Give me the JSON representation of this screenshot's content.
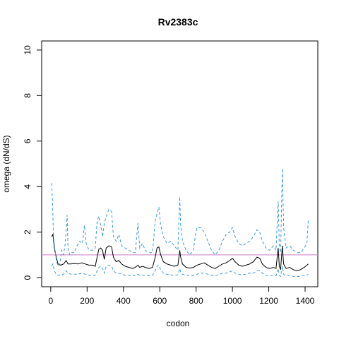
{
  "chart_data": {
    "type": "line",
    "title": "Rv2383c",
    "xlabel": "codon",
    "ylabel": "omega (dN/dS)",
    "xlim": [
      -50,
      1470
    ],
    "ylim": [
      -0.4,
      10.4
    ],
    "xticks": [
      0,
      200,
      400,
      600,
      800,
      1000,
      1200,
      1400
    ],
    "yticks": [
      0,
      2,
      4,
      6,
      8,
      10
    ],
    "reference_line": {
      "y": 1,
      "color": "#c77cc7"
    },
    "grid": false,
    "series": [
      {
        "style": "solid",
        "color": "#000000",
        "points": [
          [
            5,
            1.8
          ],
          [
            12,
            1.9
          ],
          [
            20,
            1.3
          ],
          [
            30,
            0.9
          ],
          [
            40,
            0.6
          ],
          [
            55,
            0.55
          ],
          [
            70,
            0.6
          ],
          [
            85,
            0.75
          ],
          [
            95,
            0.6
          ],
          [
            110,
            0.6
          ],
          [
            130,
            0.62
          ],
          [
            150,
            0.6
          ],
          [
            170,
            0.65
          ],
          [
            190,
            0.6
          ],
          [
            210,
            0.55
          ],
          [
            230,
            0.55
          ],
          [
            245,
            0.5
          ],
          [
            255,
            0.9
          ],
          [
            265,
            1.25
          ],
          [
            275,
            1.3
          ],
          [
            285,
            1.2
          ],
          [
            295,
            0.8
          ],
          [
            305,
            1.3
          ],
          [
            320,
            1.4
          ],
          [
            335,
            1.35
          ],
          [
            345,
            0.9
          ],
          [
            360,
            0.7
          ],
          [
            375,
            0.75
          ],
          [
            390,
            0.6
          ],
          [
            410,
            0.5
          ],
          [
            430,
            0.45
          ],
          [
            450,
            0.4
          ],
          [
            465,
            0.45
          ],
          [
            480,
            0.55
          ],
          [
            490,
            0.45
          ],
          [
            505,
            0.5
          ],
          [
            520,
            0.45
          ],
          [
            540,
            0.4
          ],
          [
            560,
            0.45
          ],
          [
            575,
            0.9
          ],
          [
            585,
            1.3
          ],
          [
            595,
            1.35
          ],
          [
            605,
            1.0
          ],
          [
            620,
            0.7
          ],
          [
            640,
            0.6
          ],
          [
            660,
            0.55
          ],
          [
            680,
            0.5
          ],
          [
            700,
            0.55
          ],
          [
            710,
            1.2
          ],
          [
            715,
            0.9
          ],
          [
            725,
            0.6
          ],
          [
            745,
            0.45
          ],
          [
            765,
            0.42
          ],
          [
            785,
            0.45
          ],
          [
            805,
            0.55
          ],
          [
            825,
            0.6
          ],
          [
            845,
            0.65
          ],
          [
            865,
            0.55
          ],
          [
            885,
            0.45
          ],
          [
            905,
            0.4
          ],
          [
            925,
            0.5
          ],
          [
            945,
            0.6
          ],
          [
            965,
            0.65
          ],
          [
            985,
            0.75
          ],
          [
            1000,
            0.85
          ],
          [
            1015,
            0.7
          ],
          [
            1035,
            0.55
          ],
          [
            1055,
            0.5
          ],
          [
            1075,
            0.55
          ],
          [
            1095,
            0.6
          ],
          [
            1115,
            0.7
          ],
          [
            1135,
            0.9
          ],
          [
            1150,
            0.85
          ],
          [
            1165,
            0.6
          ],
          [
            1185,
            0.45
          ],
          [
            1205,
            0.4
          ],
          [
            1225,
            0.45
          ],
          [
            1240,
            0.4
          ],
          [
            1252,
            1.3
          ],
          [
            1258,
            0.5
          ],
          [
            1265,
            0.35
          ],
          [
            1275,
            1.4
          ],
          [
            1282,
            0.6
          ],
          [
            1295,
            0.4
          ],
          [
            1315,
            0.45
          ],
          [
            1335,
            0.35
          ],
          [
            1355,
            0.3
          ],
          [
            1375,
            0.35
          ],
          [
            1395,
            0.45
          ],
          [
            1410,
            0.55
          ],
          [
            1418,
            0.6
          ]
        ]
      },
      {
        "style": "dashed",
        "color": "#3a9ad9",
        "points": [
          [
            5,
            4.15
          ],
          [
            10,
            3.3
          ],
          [
            15,
            1.8
          ],
          [
            22,
            1.3
          ],
          [
            30,
            0.8
          ],
          [
            40,
            0.5
          ],
          [
            50,
            0.6
          ],
          [
            60,
            1.2
          ],
          [
            70,
            1.0
          ],
          [
            80,
            1.5
          ],
          [
            90,
            2.75
          ],
          [
            95,
            1.3
          ],
          [
            105,
            1.0
          ],
          [
            115,
            1.1
          ],
          [
            130,
            1.1
          ],
          [
            145,
            1.4
          ],
          [
            160,
            1.6
          ],
          [
            175,
            1.5
          ],
          [
            185,
            2.3
          ],
          [
            195,
            1.5
          ],
          [
            205,
            1.3
          ],
          [
            215,
            1.2
          ],
          [
            230,
            1.2
          ],
          [
            245,
            1.3
          ],
          [
            255,
            2.5
          ],
          [
            265,
            2.7
          ],
          [
            275,
            2.3
          ],
          [
            285,
            1.8
          ],
          [
            295,
            2.4
          ],
          [
            310,
            2.8
          ],
          [
            320,
            3.0
          ],
          [
            335,
            2.9
          ],
          [
            345,
            1.8
          ],
          [
            360,
            1.6
          ],
          [
            375,
            1.9
          ],
          [
            390,
            1.4
          ],
          [
            410,
            1.3
          ],
          [
            430,
            1.2
          ],
          [
            450,
            1.1
          ],
          [
            465,
            1.1
          ],
          [
            480,
            2.4
          ],
          [
            490,
            1.3
          ],
          [
            505,
            1.5
          ],
          [
            520,
            1.2
          ],
          [
            540,
            1.1
          ],
          [
            560,
            1.1
          ],
          [
            575,
            2.5
          ],
          [
            585,
            2.8
          ],
          [
            595,
            3.1
          ],
          [
            605,
            2.3
          ],
          [
            620,
            1.8
          ],
          [
            640,
            1.5
          ],
          [
            660,
            1.6
          ],
          [
            680,
            1.4
          ],
          [
            700,
            1.2
          ],
          [
            710,
            3.55
          ],
          [
            715,
            2.3
          ],
          [
            725,
            1.6
          ],
          [
            745,
            1.2
          ],
          [
            765,
            1.0
          ],
          [
            785,
            1.2
          ],
          [
            795,
            1.8
          ],
          [
            805,
            2.2
          ],
          [
            825,
            2.2
          ],
          [
            845,
            2.0
          ],
          [
            865,
            1.6
          ],
          [
            885,
            1.2
          ],
          [
            905,
            1.0
          ],
          [
            925,
            1.2
          ],
          [
            945,
            1.6
          ],
          [
            965,
            1.9
          ],
          [
            985,
            2.0
          ],
          [
            1000,
            2.2
          ],
          [
            1015,
            1.8
          ],
          [
            1035,
            1.5
          ],
          [
            1055,
            1.4
          ],
          [
            1075,
            1.5
          ],
          [
            1095,
            1.6
          ],
          [
            1115,
            1.8
          ],
          [
            1135,
            2.1
          ],
          [
            1150,
            2.0
          ],
          [
            1165,
            1.6
          ],
          [
            1185,
            1.3
          ],
          [
            1205,
            1.2
          ],
          [
            1225,
            1.4
          ],
          [
            1240,
            1.2
          ],
          [
            1252,
            3.35
          ],
          [
            1258,
            1.4
          ],
          [
            1265,
            1.1
          ],
          [
            1275,
            4.8
          ],
          [
            1282,
            2.2
          ],
          [
            1295,
            1.3
          ],
          [
            1315,
            1.4
          ],
          [
            1335,
            1.2
          ],
          [
            1355,
            1.1
          ],
          [
            1375,
            1.1
          ],
          [
            1395,
            1.3
          ],
          [
            1410,
            1.5
          ],
          [
            1418,
            2.6
          ]
        ]
      },
      {
        "style": "dashed",
        "color": "#3a9ad9",
        "points": [
          [
            5,
            0.5
          ],
          [
            12,
            0.6
          ],
          [
            20,
            0.3
          ],
          [
            30,
            0.15
          ],
          [
            40,
            0.1
          ],
          [
            55,
            0.12
          ],
          [
            70,
            0.15
          ],
          [
            85,
            0.3
          ],
          [
            95,
            0.2
          ],
          [
            110,
            0.15
          ],
          [
            130,
            0.15
          ],
          [
            150,
            0.15
          ],
          [
            170,
            0.2
          ],
          [
            190,
            0.15
          ],
          [
            210,
            0.1
          ],
          [
            230,
            0.1
          ],
          [
            245,
            0.1
          ],
          [
            255,
            0.3
          ],
          [
            265,
            0.45
          ],
          [
            275,
            0.5
          ],
          [
            285,
            0.4
          ],
          [
            295,
            0.2
          ],
          [
            305,
            0.5
          ],
          [
            320,
            0.55
          ],
          [
            335,
            0.5
          ],
          [
            345,
            0.3
          ],
          [
            360,
            0.2
          ],
          [
            375,
            0.2
          ],
          [
            390,
            0.15
          ],
          [
            410,
            0.1
          ],
          [
            430,
            0.1
          ],
          [
            450,
            0.08
          ],
          [
            465,
            0.1
          ],
          [
            480,
            0.15
          ],
          [
            490,
            0.1
          ],
          [
            505,
            0.1
          ],
          [
            520,
            0.1
          ],
          [
            540,
            0.08
          ],
          [
            560,
            0.1
          ],
          [
            575,
            0.3
          ],
          [
            585,
            0.5
          ],
          [
            595,
            0.55
          ],
          [
            605,
            0.35
          ],
          [
            620,
            0.2
          ],
          [
            640,
            0.15
          ],
          [
            660,
            0.12
          ],
          [
            680,
            0.1
          ],
          [
            700,
            0.12
          ],
          [
            710,
            0.4
          ],
          [
            715,
            0.25
          ],
          [
            725,
            0.15
          ],
          [
            745,
            0.1
          ],
          [
            765,
            0.08
          ],
          [
            785,
            0.1
          ],
          [
            805,
            0.15
          ],
          [
            825,
            0.2
          ],
          [
            845,
            0.2
          ],
          [
            865,
            0.15
          ],
          [
            885,
            0.1
          ],
          [
            905,
            0.08
          ],
          [
            925,
            0.12
          ],
          [
            945,
            0.2
          ],
          [
            965,
            0.2
          ],
          [
            985,
            0.25
          ],
          [
            1000,
            0.3
          ],
          [
            1015,
            0.2
          ],
          [
            1035,
            0.15
          ],
          [
            1055,
            0.12
          ],
          [
            1075,
            0.15
          ],
          [
            1095,
            0.2
          ],
          [
            1115,
            0.2
          ],
          [
            1135,
            0.3
          ],
          [
            1150,
            0.3
          ],
          [
            1165,
            0.2
          ],
          [
            1185,
            0.1
          ],
          [
            1205,
            0.08
          ],
          [
            1225,
            0.1
          ],
          [
            1240,
            0.08
          ],
          [
            1252,
            0.4
          ],
          [
            1258,
            0.1
          ],
          [
            1265,
            0.05
          ],
          [
            1275,
            0.5
          ],
          [
            1282,
            0.15
          ],
          [
            1295,
            0.08
          ],
          [
            1315,
            0.1
          ],
          [
            1335,
            0.06
          ],
          [
            1355,
            0.05
          ],
          [
            1375,
            0.06
          ],
          [
            1395,
            0.1
          ],
          [
            1410,
            0.12
          ],
          [
            1418,
            0.15
          ]
        ]
      }
    ]
  }
}
